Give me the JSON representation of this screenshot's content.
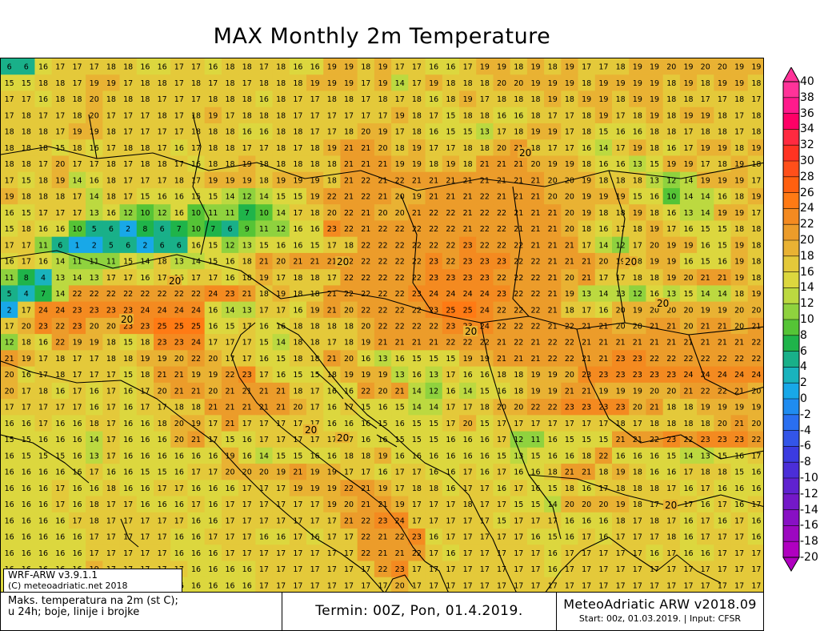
{
  "title": "MAX Monthly 2m Temperature",
  "legend": {
    "labels": [
      "40",
      "38",
      "36",
      "34",
      "32",
      "30",
      "28",
      "26",
      "24",
      "22",
      "20",
      "18",
      "16",
      "14",
      "12",
      "10",
      "8",
      "6",
      "4",
      "2",
      "0",
      "-2",
      "-4",
      "-6",
      "-8",
      "-10",
      "-12",
      "-14",
      "-16",
      "-18",
      "-20"
    ],
    "colors": [
      "#ff3399",
      "#ff1a8c",
      "#ff0066",
      "#ff2a40",
      "#ff3322",
      "#ff4f1a",
      "#ff6010",
      "#ff7a14",
      "#f48a20",
      "#ec9c2a",
      "#e9b233",
      "#e4c93a",
      "#dcd73e",
      "#bcd940",
      "#8fd23e",
      "#55c436",
      "#1fb44a",
      "#19b089",
      "#19b3bd",
      "#18a8e8",
      "#1f8cf0",
      "#2a6ff0",
      "#3355e8",
      "#3b3be0",
      "#4b2ed8",
      "#5f22d0",
      "#7418c8",
      "#8810c4",
      "#9c08c0",
      "#b000c0"
    ]
  },
  "map": {
    "grid_values": [
      [
        6,
        6,
        16,
        17,
        17,
        17,
        18,
        18,
        16,
        16,
        17,
        17,
        16,
        18,
        18,
        17,
        18,
        16,
        16,
        19,
        19,
        18,
        19,
        17,
        17,
        16,
        16,
        17,
        19,
        19,
        18,
        19,
        18,
        19,
        17,
        17,
        18,
        19,
        19,
        20,
        19,
        20,
        20,
        19,
        19
      ],
      [
        15,
        15,
        18,
        18,
        17,
        19,
        19,
        17,
        18,
        18,
        17,
        18,
        17,
        18,
        17,
        18,
        18,
        18,
        19,
        19,
        19,
        17,
        19,
        14,
        17,
        19,
        18,
        18,
        18,
        20,
        20,
        19,
        19,
        19,
        18,
        19,
        19,
        19,
        19,
        18,
        19,
        18,
        19,
        19,
        18
      ],
      [
        17,
        17,
        16,
        18,
        18,
        20,
        18,
        18,
        18,
        17,
        17,
        17,
        18,
        18,
        18,
        16,
        18,
        17,
        17,
        18,
        18,
        17,
        18,
        17,
        18,
        16,
        18,
        19,
        17,
        18,
        18,
        18,
        19,
        18,
        19,
        19,
        18,
        19,
        19,
        18,
        18,
        17,
        17,
        18,
        17
      ],
      [
        17,
        18,
        17,
        17,
        18,
        20,
        17,
        17,
        17,
        18,
        17,
        18,
        19,
        17,
        18,
        18,
        18,
        17,
        17,
        17,
        17,
        17,
        17,
        19,
        18,
        17,
        15,
        18,
        18,
        16,
        16,
        18,
        17,
        17,
        18,
        19,
        17,
        18,
        19,
        18,
        19,
        19,
        18,
        17,
        18
      ],
      [
        18,
        18,
        18,
        17,
        19,
        19,
        18,
        17,
        17,
        17,
        17,
        18,
        18,
        18,
        16,
        16,
        18,
        18,
        17,
        17,
        18,
        20,
        19,
        17,
        18,
        16,
        15,
        15,
        13,
        17,
        18,
        19,
        19,
        17,
        18,
        15,
        16,
        16,
        18,
        18,
        17,
        18,
        18,
        17,
        18
      ],
      [
        18,
        18,
        18,
        15,
        18,
        16,
        17,
        18,
        18,
        17,
        16,
        17,
        18,
        18,
        17,
        17,
        18,
        17,
        18,
        19,
        21,
        21,
        20,
        18,
        19,
        17,
        17,
        18,
        18,
        20,
        21,
        18,
        17,
        17,
        16,
        14,
        17,
        19,
        18,
        16,
        17,
        19,
        19,
        18,
        19
      ],
      [
        18,
        18,
        17,
        20,
        17,
        17,
        18,
        17,
        18,
        18,
        17,
        16,
        18,
        18,
        19,
        18,
        18,
        18,
        18,
        18,
        21,
        21,
        21,
        19,
        19,
        18,
        19,
        18,
        21,
        21,
        21,
        20,
        19,
        19,
        18,
        16,
        16,
        13,
        15,
        19,
        19,
        17,
        18,
        19,
        18
      ],
      [
        17,
        15,
        18,
        19,
        14,
        16,
        18,
        17,
        17,
        17,
        18,
        17,
        19,
        19,
        19,
        18,
        19,
        19,
        19,
        18,
        21,
        22,
        21,
        22,
        21,
        21,
        21,
        21,
        21,
        21,
        21,
        21,
        20,
        20,
        19,
        18,
        18,
        18,
        13,
        12,
        14,
        19,
        19,
        19,
        17
      ],
      [
        19,
        18,
        18,
        18,
        17,
        14,
        18,
        17,
        15,
        16,
        16,
        15,
        15,
        14,
        12,
        14,
        15,
        15,
        19,
        22,
        21,
        22,
        21,
        20,
        19,
        21,
        21,
        21,
        22,
        21,
        21,
        21,
        20,
        20,
        19,
        19,
        19,
        15,
        16,
        10,
        14,
        14,
        16,
        18,
        19
      ],
      [
        16,
        15,
        17,
        17,
        17,
        13,
        16,
        12,
        10,
        12,
        16,
        10,
        11,
        11,
        7,
        10,
        14,
        17,
        18,
        20,
        22,
        21,
        20,
        20,
        21,
        22,
        22,
        21,
        22,
        22,
        21,
        21,
        21,
        20,
        19,
        18,
        18,
        19,
        18,
        16,
        13,
        14,
        19,
        19,
        17
      ],
      [
        15,
        18,
        16,
        16,
        10,
        5,
        6,
        2,
        8,
        6,
        7,
        10,
        7,
        6,
        9,
        11,
        12,
        16,
        16,
        23,
        22,
        21,
        22,
        22,
        22,
        22,
        22,
        21,
        22,
        22,
        21,
        21,
        21,
        20,
        18,
        16,
        17,
        18,
        19,
        17,
        16,
        15,
        15,
        18,
        18
      ],
      [
        17,
        17,
        11,
        6,
        1,
        2,
        5,
        6,
        2,
        6,
        6,
        16,
        15,
        12,
        13,
        15,
        16,
        16,
        15,
        17,
        18,
        22,
        22,
        22,
        22,
        22,
        22,
        23,
        22,
        22,
        22,
        21,
        21,
        21,
        17,
        14,
        12,
        17,
        20,
        19,
        19,
        16,
        15,
        19,
        18
      ],
      [
        16,
        17,
        16,
        14,
        11,
        11,
        11,
        15,
        14,
        18,
        13,
        14,
        15,
        16,
        18,
        21,
        20,
        21,
        21,
        21,
        22,
        22,
        22,
        22,
        22,
        23,
        22,
        23,
        23,
        23,
        22,
        22,
        21,
        21,
        21,
        20,
        19,
        18,
        19,
        19,
        16,
        15,
        16,
        19,
        18
      ],
      [
        11,
        8,
        4,
        13,
        14,
        13,
        17,
        17,
        16,
        17,
        16,
        17,
        17,
        16,
        18,
        19,
        17,
        18,
        18,
        17,
        22,
        22,
        22,
        22,
        22,
        23,
        23,
        23,
        23,
        22,
        22,
        22,
        21,
        20,
        21,
        17,
        17,
        18,
        18,
        19,
        20,
        21,
        21,
        19,
        18
      ],
      [
        5,
        4,
        7,
        14,
        22,
        22,
        22,
        22,
        22,
        22,
        22,
        22,
        24,
        23,
        21,
        18,
        19,
        18,
        18,
        21,
        22,
        22,
        22,
        22,
        23,
        24,
        24,
        24,
        24,
        23,
        22,
        22,
        21,
        19,
        13,
        14,
        13,
        12,
        16,
        13,
        15,
        14,
        14,
        18,
        19
      ],
      [
        2,
        17,
        24,
        24,
        23,
        23,
        23,
        23,
        24,
        24,
        24,
        24,
        16,
        14,
        13,
        17,
        17,
        16,
        19,
        21,
        20,
        22,
        22,
        22,
        22,
        23,
        25,
        25,
        24,
        22,
        22,
        22,
        21,
        18,
        17,
        16,
        20,
        19,
        20,
        20,
        20,
        19,
        19,
        20,
        20
      ],
      [
        17,
        20,
        23,
        22,
        23,
        20,
        20,
        23,
        23,
        25,
        25,
        25,
        16,
        15,
        17,
        16,
        16,
        18,
        18,
        18,
        18,
        20,
        22,
        22,
        22,
        22,
        23,
        23,
        24,
        22,
        22,
        22,
        21,
        22,
        21,
        21,
        20,
        20,
        21,
        21,
        20,
        21,
        21,
        20,
        21
      ],
      [
        12,
        18,
        16,
        22,
        19,
        19,
        18,
        15,
        18,
        23,
        23,
        24,
        17,
        17,
        17,
        15,
        14,
        18,
        18,
        17,
        18,
        19,
        21,
        21,
        21,
        21,
        22,
        22,
        22,
        21,
        22,
        21,
        22,
        22,
        21,
        21,
        21,
        21,
        21,
        21,
        21,
        21,
        21,
        21,
        22
      ],
      [
        21,
        19,
        17,
        18,
        17,
        17,
        18,
        18,
        19,
        19,
        20,
        22,
        20,
        17,
        17,
        16,
        15,
        18,
        18,
        21,
        20,
        16,
        13,
        16,
        15,
        15,
        15,
        19,
        19,
        21,
        21,
        21,
        22,
        22,
        21,
        21,
        23,
        23,
        22,
        22,
        22,
        22,
        22,
        22,
        22
      ],
      [
        20,
        16,
        17,
        18,
        17,
        17,
        17,
        15,
        18,
        21,
        21,
        19,
        19,
        22,
        23,
        17,
        16,
        15,
        15,
        18,
        19,
        19,
        19,
        13,
        16,
        13,
        17,
        16,
        16,
        18,
        18,
        19,
        19,
        20,
        23,
        23,
        23,
        23,
        23,
        23,
        24,
        24,
        24,
        24,
        24
      ],
      [
        20,
        17,
        18,
        16,
        17,
        16,
        17,
        16,
        17,
        20,
        21,
        21,
        20,
        21,
        21,
        21,
        21,
        18,
        17,
        16,
        16,
        22,
        20,
        21,
        14,
        12,
        16,
        14,
        15,
        16,
        18,
        19,
        19,
        21,
        21,
        19,
        19,
        19,
        20,
        20,
        21,
        22,
        22,
        21,
        20
      ],
      [
        17,
        17,
        17,
        17,
        17,
        16,
        17,
        16,
        17,
        17,
        18,
        18,
        21,
        21,
        21,
        21,
        21,
        20,
        17,
        16,
        17,
        15,
        16,
        15,
        14,
        14,
        17,
        17,
        18,
        20,
        20,
        22,
        22,
        23,
        23,
        23,
        23,
        20,
        21,
        18,
        18,
        19,
        19,
        19,
        19
      ],
      [
        16,
        16,
        17,
        16,
        16,
        18,
        17,
        16,
        16,
        18,
        20,
        19,
        17,
        21,
        17,
        17,
        17,
        17,
        17,
        16,
        16,
        16,
        15,
        16,
        15,
        15,
        17,
        20,
        15,
        17,
        17,
        17,
        17,
        17,
        17,
        17,
        18,
        17,
        18,
        18,
        18,
        18,
        20,
        21,
        20
      ],
      [
        15,
        15,
        16,
        16,
        16,
        14,
        17,
        16,
        16,
        16,
        20,
        21,
        17,
        15,
        16,
        17,
        17,
        17,
        17,
        17,
        17,
        16,
        16,
        15,
        15,
        15,
        16,
        16,
        16,
        17,
        12,
        11,
        16,
        15,
        15,
        15,
        21,
        21,
        22,
        23,
        22,
        23,
        23,
        23,
        22
      ],
      [
        16,
        15,
        15,
        15,
        16,
        13,
        17,
        16,
        16,
        16,
        16,
        16,
        16,
        19,
        16,
        14,
        15,
        15,
        16,
        16,
        18,
        18,
        19,
        16,
        16,
        16,
        16,
        16,
        16,
        15,
        13,
        15,
        16,
        16,
        18,
        22,
        16,
        16,
        16,
        15,
        14,
        13,
        15,
        16,
        17
      ],
      [
        16,
        16,
        16,
        16,
        16,
        17,
        16,
        16,
        15,
        15,
        16,
        17,
        17,
        20,
        20,
        20,
        19,
        21,
        19,
        19,
        17,
        17,
        16,
        17,
        17,
        16,
        16,
        17,
        16,
        17,
        16,
        16,
        18,
        21,
        21,
        18,
        19,
        18,
        16,
        16,
        17,
        18,
        18,
        15,
        16
      ],
      [
        16,
        16,
        16,
        17,
        16,
        16,
        18,
        16,
        16,
        17,
        17,
        16,
        16,
        16,
        17,
        17,
        17,
        19,
        19,
        19,
        22,
        21,
        19,
        17,
        18,
        18,
        16,
        17,
        17,
        16,
        17,
        16,
        15,
        18,
        16,
        17,
        18,
        18,
        18,
        17,
        16,
        17,
        16,
        16,
        16
      ],
      [
        16,
        16,
        16,
        17,
        16,
        18,
        17,
        17,
        16,
        16,
        16,
        17,
        16,
        17,
        17,
        17,
        17,
        17,
        17,
        19,
        20,
        21,
        21,
        19,
        17,
        17,
        17,
        18,
        17,
        17,
        15,
        15,
        14,
        20,
        20,
        20,
        19,
        18,
        17,
        17,
        17,
        16,
        17,
        16,
        17
      ],
      [
        16,
        16,
        16,
        16,
        17,
        18,
        17,
        17,
        17,
        17,
        17,
        16,
        16,
        17,
        17,
        17,
        17,
        17,
        17,
        17,
        21,
        22,
        23,
        24,
        17,
        17,
        17,
        17,
        17,
        15,
        17,
        17,
        17,
        16,
        16,
        16,
        18,
        17,
        18,
        17,
        16,
        17,
        16,
        17,
        16
      ],
      [
        16,
        16,
        16,
        16,
        16,
        17,
        17,
        17,
        17,
        17,
        16,
        16,
        17,
        17,
        17,
        16,
        16,
        17,
        16,
        17,
        17,
        22,
        21,
        22,
        23,
        16,
        17,
        17,
        17,
        17,
        17,
        16,
        15,
        16,
        17,
        16,
        17,
        17,
        17,
        18,
        16,
        17,
        17,
        17,
        16
      ],
      [
        16,
        16,
        16,
        16,
        16,
        17,
        17,
        17,
        17,
        17,
        16,
        16,
        16,
        17,
        17,
        17,
        17,
        17,
        17,
        17,
        17,
        22,
        21,
        21,
        22,
        17,
        16,
        17,
        17,
        17,
        17,
        17,
        16,
        17,
        17,
        17,
        17,
        17,
        16,
        17,
        16,
        16,
        17,
        17,
        17
      ],
      [
        16,
        16,
        16,
        16,
        16,
        19,
        17,
        17,
        17,
        17,
        17,
        16,
        16,
        16,
        16,
        17,
        17,
        17,
        17,
        17,
        17,
        17,
        22,
        23,
        17,
        17,
        17,
        17,
        17,
        17,
        17,
        17,
        16,
        17,
        17,
        17,
        17,
        17,
        17,
        17,
        17,
        17,
        17,
        17,
        17
      ],
      [
        16,
        16,
        16,
        16,
        16,
        17,
        17,
        17,
        16,
        16,
        16,
        16,
        16,
        16,
        16,
        17,
        17,
        17,
        17,
        17,
        17,
        17,
        17,
        20,
        17,
        17,
        17,
        17,
        17,
        17,
        17,
        17,
        17,
        17,
        17,
        17,
        17,
        17,
        17,
        17,
        17,
        17,
        17,
        17,
        17
      ]
    ],
    "contour_label": "20"
  },
  "model_box": {
    "line1": "WRF-ARW v3.9.1.1",
    "line2": "(C) meteoadriatic.net 2018"
  },
  "footer": {
    "left_line1": "Maks. temperatura na 2m (st C);",
    "left_line2": "u 24h; boje, linije i brojke",
    "middle": "Termin: 00Z, Pon, 01.4.2019.",
    "brand": "MeteoAdriatic ARW v2018.09",
    "sub": "Start: 00z, 01.03.2019. | Input: CFSR"
  }
}
